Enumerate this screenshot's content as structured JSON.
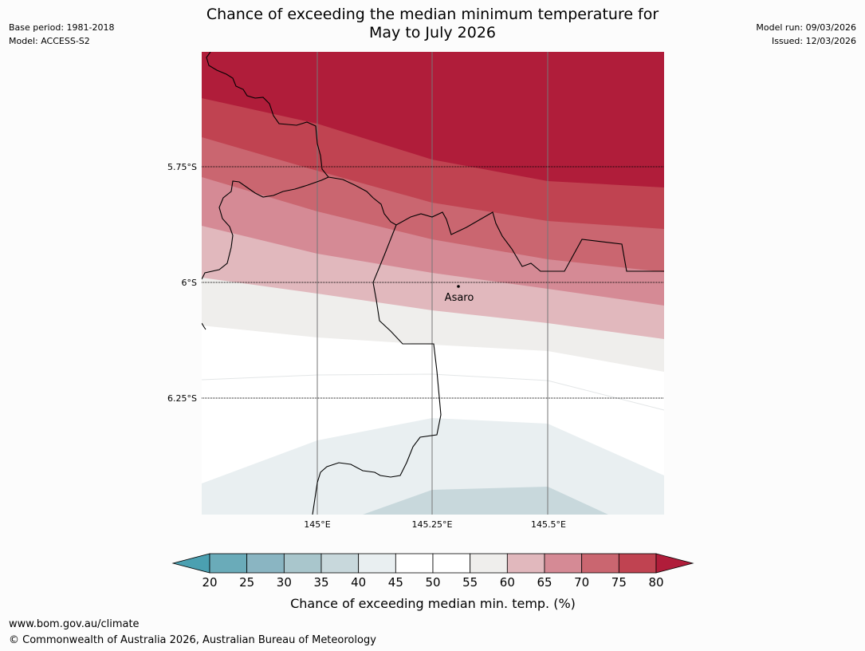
{
  "header": {
    "title_line1": "Chance of exceeding the median minimum temperature for",
    "title_line2": "May to July 2026",
    "base_period": "Base period: 1981-2018",
    "model": "Model: ACCESS-S2",
    "model_run": "Model run: 09/03/2026",
    "issued": "Issued: 12/03/2026"
  },
  "map": {
    "lat_labels": [
      "5.75°S",
      "6°S",
      "6.25°S"
    ],
    "lon_labels": [
      "145°E",
      "145.25°E",
      "145.5°E"
    ],
    "place": "Asaro"
  },
  "colorbar": {
    "ticks": [
      "20",
      "25",
      "30",
      "35",
      "40",
      "45",
      "50",
      "55",
      "60",
      "65",
      "70",
      "75",
      "80"
    ],
    "colors": [
      "#6aabb9",
      "#8ab5c2",
      "#a9c6cc",
      "#c8d8dc",
      "#e9eff1",
      "#ffffff",
      "#ffffff",
      "#efeeec",
      "#e1b8bd",
      "#d58a95",
      "#ca6670",
      "#c04351"
    ],
    "under_color": "#4ba0b1",
    "over_color": "#b01d3a",
    "label": "Chance of exceeding median min. temp. (%)"
  },
  "footer": {
    "url": "www.bom.gov.au/climate",
    "copyright": "© Commonwealth of Australia 2026, Australian Bureau of Meteorology"
  }
}
